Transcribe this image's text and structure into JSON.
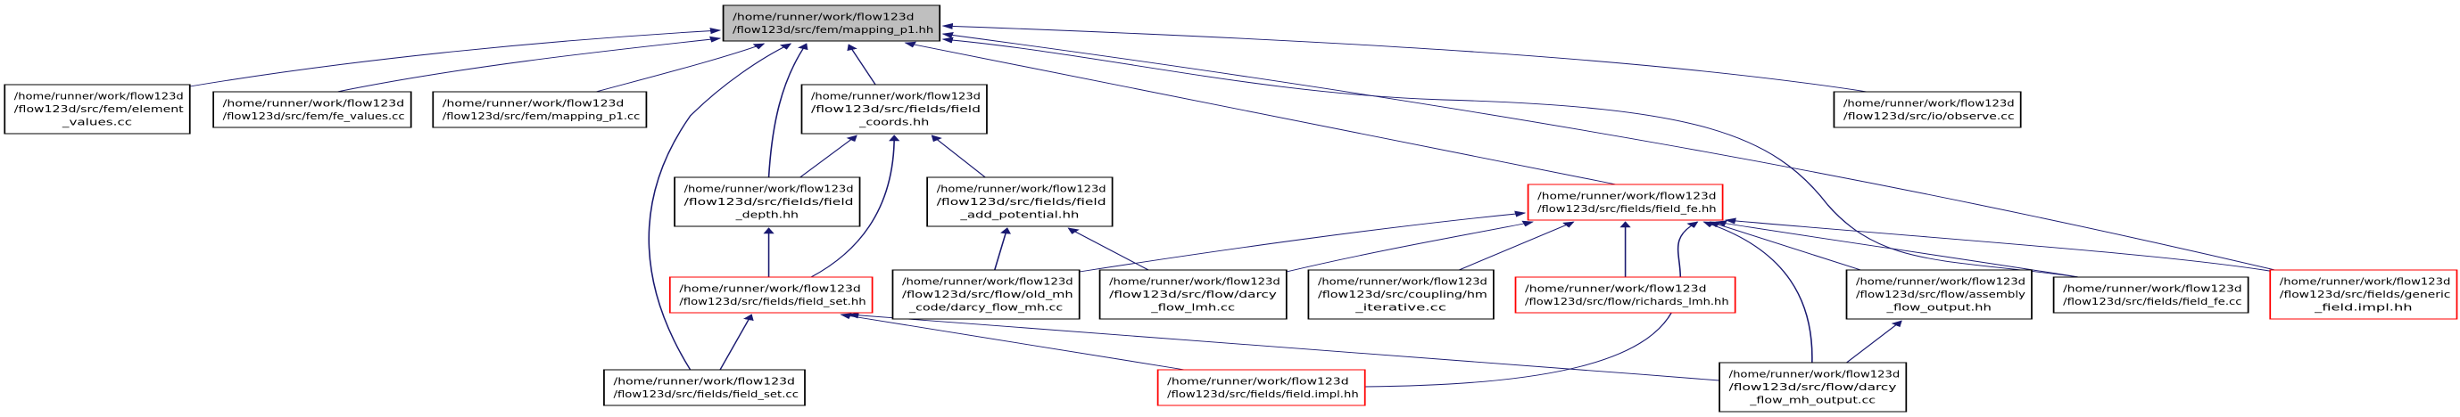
{
  "colors": {
    "edge": "#191970",
    "root_fill": "#bfbfbf",
    "node_border": "#000000",
    "truncated_border": "#ff0000",
    "node_fill": "#ffffff"
  },
  "nodes": [
    {
      "id": "root",
      "style": "root",
      "lines": [
        "/home/runner/work/flow123d",
        "/flow123d/src/fem/mapping_p1.hh"
      ]
    },
    {
      "id": "element_values",
      "style": "normal",
      "lines": [
        "/home/runner/work/flow123d",
        "/flow123d/src/fem/element",
        "_values.cc"
      ]
    },
    {
      "id": "fe_values",
      "style": "normal",
      "lines": [
        "/home/runner/work/flow123d",
        "/flow123d/src/fem/fe_values.cc"
      ]
    },
    {
      "id": "mapping_p1_cc",
      "style": "normal",
      "lines": [
        "/home/runner/work/flow123d",
        "/flow123d/src/fem/mapping_p1.cc"
      ]
    },
    {
      "id": "field_coords",
      "style": "normal",
      "lines": [
        "/home/runner/work/flow123d",
        "/flow123d/src/fields/field",
        "_coords.hh"
      ]
    },
    {
      "id": "observe",
      "style": "normal",
      "lines": [
        "/home/runner/work/flow123d",
        "/flow123d/src/io/observe.cc"
      ]
    },
    {
      "id": "field_depth",
      "style": "normal",
      "lines": [
        "/home/runner/work/flow123d",
        "/flow123d/src/fields/field",
        "_depth.hh"
      ]
    },
    {
      "id": "field_add_potential",
      "style": "normal",
      "lines": [
        "/home/runner/work/flow123d",
        "/flow123d/src/fields/field",
        "_add_potential.hh"
      ]
    },
    {
      "id": "field_fe_hh",
      "style": "truncated",
      "lines": [
        "/home/runner/work/flow123d",
        "/flow123d/src/fields/field_fe.hh"
      ]
    },
    {
      "id": "field_set_hh",
      "style": "truncated",
      "lines": [
        "/home/runner/work/flow123d",
        "/flow123d/src/fields/field_set.hh"
      ]
    },
    {
      "id": "old_mh",
      "style": "normal",
      "lines": [
        "/home/runner/work/flow123d",
        "/flow123d/src/flow/old_mh",
        "_code/darcy_flow_mh.cc"
      ]
    },
    {
      "id": "darcy_lmh",
      "style": "normal",
      "lines": [
        "/home/runner/work/flow123d",
        "/flow123d/src/flow/darcy",
        "_flow_lmh.cc"
      ]
    },
    {
      "id": "hm_iterative",
      "style": "normal",
      "lines": [
        "/home/runner/work/flow123d",
        "/flow123d/src/coupling/hm",
        "_iterative.cc"
      ]
    },
    {
      "id": "richards",
      "style": "truncated",
      "lines": [
        "/home/runner/work/flow123d",
        "/flow123d/src/flow/richards_lmh.hh"
      ]
    },
    {
      "id": "assembly",
      "style": "normal",
      "lines": [
        "/home/runner/work/flow123d",
        "/flow123d/src/flow/assembly",
        "_flow_output.hh"
      ]
    },
    {
      "id": "field_fe_cc",
      "style": "normal",
      "lines": [
        "/home/runner/work/flow123d",
        "/flow123d/src/fields/field_fe.cc"
      ]
    },
    {
      "id": "generic",
      "style": "truncated",
      "lines": [
        "/home/runner/work/flow123d",
        "/flow123d/src/fields/generic",
        "_field.impl.hh"
      ]
    },
    {
      "id": "field_set_cc",
      "style": "normal",
      "lines": [
        "/home/runner/work/flow123d",
        "/flow123d/src/fields/field_set.cc"
      ]
    },
    {
      "id": "field_impl",
      "style": "truncated",
      "lines": [
        "/home/runner/work/flow123d",
        "/flow123d/src/fields/field.impl.hh"
      ]
    },
    {
      "id": "darcy_output",
      "style": "normal",
      "lines": [
        "/home/runner/work/flow123d",
        "/flow123d/src/flow/darcy",
        "_flow_mh_output.cc"
      ]
    }
  ],
  "edges": [
    {
      "from": "element_values",
      "to": "root"
    },
    {
      "from": "fe_values",
      "to": "root"
    },
    {
      "from": "mapping_p1_cc",
      "to": "root"
    },
    {
      "from": "field_coords",
      "to": "root"
    },
    {
      "from": "field_depth",
      "to": "root"
    },
    {
      "from": "field_set_cc",
      "to": "root"
    },
    {
      "from": "field_fe_hh",
      "to": "root"
    },
    {
      "from": "field_fe_cc",
      "to": "root"
    },
    {
      "from": "observe",
      "to": "root"
    },
    {
      "from": "generic",
      "to": "root"
    },
    {
      "from": "field_depth",
      "to": "field_coords"
    },
    {
      "from": "field_set_hh",
      "to": "field_coords"
    },
    {
      "from": "field_add_potential",
      "to": "field_coords"
    },
    {
      "from": "field_set_hh",
      "to": "field_depth"
    },
    {
      "from": "old_mh",
      "to": "field_add_potential"
    },
    {
      "from": "darcy_lmh",
      "to": "field_add_potential"
    },
    {
      "from": "old_mh",
      "to": "field_fe_hh"
    },
    {
      "from": "darcy_lmh",
      "to": "field_fe_hh"
    },
    {
      "from": "hm_iterative",
      "to": "field_fe_hh"
    },
    {
      "from": "richards",
      "to": "field_fe_hh"
    },
    {
      "from": "field_impl",
      "to": "field_fe_hh"
    },
    {
      "from": "darcy_output",
      "to": "field_fe_hh"
    },
    {
      "from": "assembly",
      "to": "field_fe_hh"
    },
    {
      "from": "field_fe_cc",
      "to": "field_fe_hh"
    },
    {
      "from": "generic",
      "to": "field_fe_hh"
    },
    {
      "from": "field_set_cc",
      "to": "field_set_hh"
    },
    {
      "from": "field_impl",
      "to": "field_set_hh"
    },
    {
      "from": "darcy_output",
      "to": "field_set_hh"
    },
    {
      "from": "darcy_output",
      "to": "assembly"
    }
  ]
}
